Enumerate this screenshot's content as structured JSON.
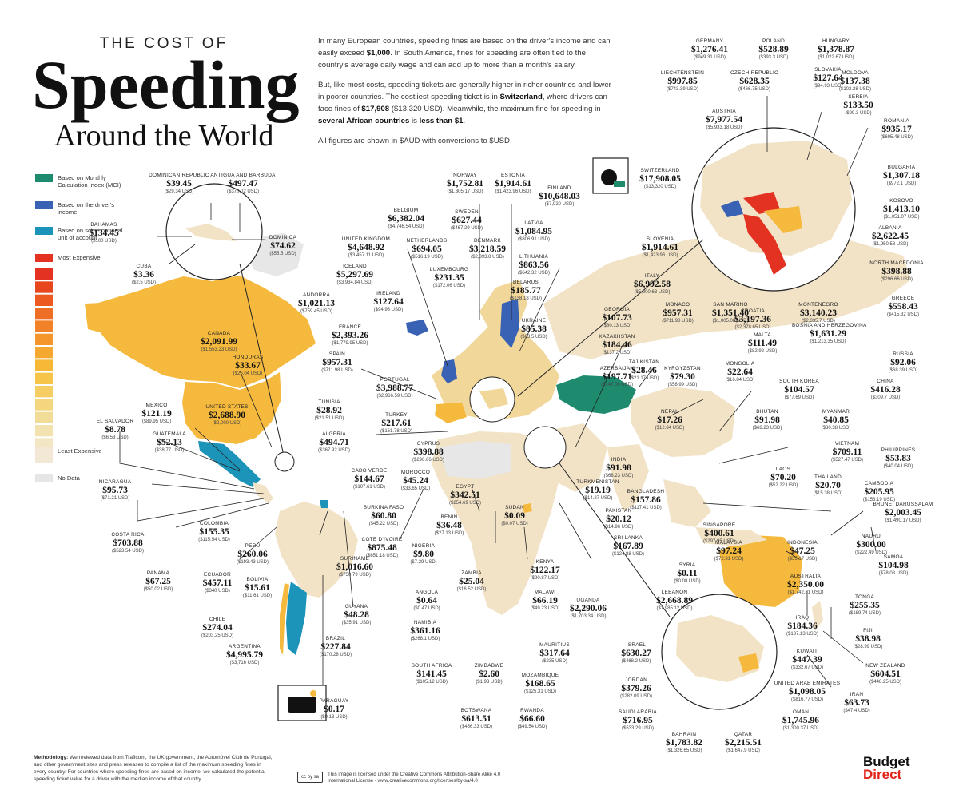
{
  "title": {
    "kicker": "THE COST OF",
    "main": "Speeding",
    "sub": "Around the World"
  },
  "intro": {
    "p1a": "In many European countries, speeding fines are based on the driver's income and can easily exceed ",
    "p1b": "$1,000",
    "p1c": ". In South America, fines for speeding are often tied to the country's average daily wage and can add up to more than a month's salary.",
    "p2a": "But, like most costs, speeding tickets are generally higher in richer countries and lower in poorer countries. The costliest speeding ticket is in ",
    "p2b": "Switzerland",
    "p2c": ", where drivers can face fines of ",
    "p2d": "$17,908",
    "p2e": " ($13,320 USD). Meanwhile, the maximum fine for speeding in ",
    "p2f": "several African countries",
    "p2g": " is ",
    "p2h": "less than $1",
    "p2i": ".",
    "p3": "All figures are shown in $AUD with conversions to $USD."
  },
  "legend": {
    "mci": "Based on Monthly Calculation Index (MCI)",
    "income": "Based on the driver's income",
    "national": "Based on some national unit of account",
    "most": "Most Expensive",
    "least": "Least Expensive",
    "nodata": "No Data",
    "colors": {
      "mci": "#1e8a6e",
      "income": "#3a62b4",
      "national": "#1c93b8",
      "most": "#e43222",
      "least": "#f3e8d6",
      "nodata": "#e6e6e6"
    }
  },
  "colors": {
    "top": "#e43222",
    "high": "#f28a2a",
    "mid": "#f5b93e",
    "low": "#f1d79a",
    "vlow": "#f2e3c7",
    "nodata": "#e7e7e7"
  },
  "countries": [
    {
      "n": "Dominican Republic",
      "a": "$39.45",
      "u": "($29.34 USD)"
    },
    {
      "n": "Antigua and Barbuda",
      "a": "$497.47",
      "u": "($370.02 USD)"
    },
    {
      "n": "Bahamas",
      "a": "$134.45",
      "u": "($100 USD)"
    },
    {
      "n": "Dominica",
      "a": "$74.62",
      "u": "($55.5 USD)"
    },
    {
      "n": "Cuba",
      "a": "$3.36",
      "u": "($2.5 USD)"
    },
    {
      "n": "Canada",
      "a": "$2,091.99",
      "u": "($1,553.23 USD)"
    },
    {
      "n": "Honduras",
      "a": "$33.67",
      "u": "($25.04 USD)"
    },
    {
      "n": "United States",
      "a": "$2,688.90",
      "u": "($2,000 USD)"
    },
    {
      "n": "Mexico",
      "a": "$121.19",
      "u": "($89.95 USD)"
    },
    {
      "n": "El Salvador",
      "a": "$8.78",
      "u": "($6.53 USD)"
    },
    {
      "n": "Guatemala",
      "a": "$52.13",
      "u": "($38.77 USD)"
    },
    {
      "n": "Nicaragua",
      "a": "$95.73",
      "u": "($71.21 USD)"
    },
    {
      "n": "Costa Rica",
      "a": "$703.88",
      "u": "($523.54 USD)"
    },
    {
      "n": "Panama",
      "a": "$67.25",
      "u": "($50.02 USD)"
    },
    {
      "n": "Colombia",
      "a": "$155.35",
      "u": "($115.54 USD)"
    },
    {
      "n": "Peru",
      "a": "$260.06",
      "u": "($193.43 USD)"
    },
    {
      "n": "Ecuador",
      "a": "$457.11",
      "u": "($340 USD)"
    },
    {
      "n": "Bolivia",
      "a": "$15.61",
      "u": "($11.61 USD)"
    },
    {
      "n": "Chile",
      "a": "$274.04",
      "u": "($203.25 USD)"
    },
    {
      "n": "Argentina",
      "a": "$4,995.79",
      "u": "($3,716 USD)"
    },
    {
      "n": "Brazil",
      "a": "$227.84",
      "u": "($170.28 USD)"
    },
    {
      "n": "Guyana",
      "a": "$48.28",
      "u": "($35.91 USD)"
    },
    {
      "n": "Suriname",
      "a": "$1,016.60",
      "u": "($750.79 USD)"
    },
    {
      "n": "Paraguay",
      "a": "$0.17",
      "u": "($0.13 USD)"
    },
    {
      "n": "Norway",
      "a": "$1,752.81",
      "u": "($1,305.17 USD)"
    },
    {
      "n": "Estonia",
      "a": "$1,914.61",
      "u": "($1,423.96 USD)"
    },
    {
      "n": "Finland",
      "a": "$10,648.03",
      "u": "($7,920 USD)"
    },
    {
      "n": "Belgium",
      "a": "$6,382.04",
      "u": "($4,746.54 USD)"
    },
    {
      "n": "Sweden",
      "a": "$627.44",
      "u": "($467.29 USD)"
    },
    {
      "n": "Latvia",
      "a": "$1,084.95",
      "u": "($806.91 USD)"
    },
    {
      "n": "United Kingdom",
      "a": "$4,648.92",
      "u": "($3,457.11 USD)"
    },
    {
      "n": "Netherlands",
      "a": "$694.05",
      "u": "($516.19 USD)"
    },
    {
      "n": "Denmark",
      "a": "$3,218.59",
      "u": "($2,393.8 USD)"
    },
    {
      "n": "Lithuania",
      "a": "$863.56",
      "u": "($642.32 USD)"
    },
    {
      "n": "Iceland",
      "a": "$5,297.69",
      "u": "($3,934.84 USD)"
    },
    {
      "n": "Luxembourg",
      "a": "$231.35",
      "u": "($172.06 USD)"
    },
    {
      "n": "Ireland",
      "a": "$127.64",
      "u": "($94.93 USD)"
    },
    {
      "n": "Belarus",
      "a": "$185.77",
      "u": "($138.18 USD)"
    },
    {
      "n": "Andorra",
      "a": "$1,021.13",
      "u": "($759.45 USD)"
    },
    {
      "n": "France",
      "a": "$2,393.26",
      "u": "($1,779.95 USD)"
    },
    {
      "n": "Ukraine",
      "a": "$85.38",
      "u": "($63.5 USD)"
    },
    {
      "n": "Spain",
      "a": "$957.31",
      "u": "($711.98 USD)"
    },
    {
      "n": "Portugal",
      "a": "$3,988.77",
      "u": "($2,966.59 USD)"
    },
    {
      "n": "Tunisia",
      "a": "$28.92",
      "u": "($21.51 USD)"
    },
    {
      "n": "Turkey",
      "a": "$217.61",
      "u": "($161.78 USD)"
    },
    {
      "n": "Algeria",
      "a": "$494.71",
      "u": "($367.92 USD)"
    },
    {
      "n": "Cyprus",
      "a": "$398.88",
      "u": "($296.66 USD)"
    },
    {
      "n": "Morocco",
      "a": "$45.24",
      "u": "($33.65 USD)"
    },
    {
      "n": "Cabo Verde",
      "a": "$144.67",
      "u": "($107.61 USD)"
    },
    {
      "n": "Egypt",
      "a": "$342.51",
      "u": "($254.69 USD)"
    },
    {
      "n": "Burkina Faso",
      "a": "$60.80",
      "u": "($45.22 USD)"
    },
    {
      "n": "Benin",
      "a": "$36.48",
      "u": "($27.13 USD)"
    },
    {
      "n": "Sudan",
      "a": "$0.09",
      "u": "($0.07 USD)"
    },
    {
      "n": "Cote d'Ivoire",
      "a": "$875.48",
      "u": "($651.18 USD)"
    },
    {
      "n": "Nigeria",
      "a": "$9.80",
      "u": "($7.29 USD)"
    },
    {
      "n": "Kenya",
      "a": "$122.17",
      "u": "($90.87 USD)"
    },
    {
      "n": "Zambia",
      "a": "$25.04",
      "u": "($16.52 USD)"
    },
    {
      "n": "Angola",
      "a": "$0.64",
      "u": "($0.47 USD)"
    },
    {
      "n": "Malawi",
      "a": "$66.19",
      "u": "($49.23 USD)"
    },
    {
      "n": "Uganda",
      "a": "$2,290.06",
      "u": "($1,703.34 USD)"
    },
    {
      "n": "Namibia",
      "a": "$361.16",
      "u": "($268.1 USD)"
    },
    {
      "n": "Mauritius",
      "a": "$317.64",
      "u": "($235 USD)"
    },
    {
      "n": "South Africa",
      "a": "$141.45",
      "u": "($105.12 USD)"
    },
    {
      "n": "Zimbabwe",
      "a": "$2.60",
      "u": "($1.93 USD)"
    },
    {
      "n": "Mozambique",
      "a": "$168.65",
      "u": "($125.31 USD)"
    },
    {
      "n": "Botswana",
      "a": "$613.51",
      "u": "($456.33 USD)"
    },
    {
      "n": "Rwanda",
      "a": "$66.60",
      "u": "($49.54 USD)"
    },
    {
      "n": "Germany",
      "a": "$1,276.41",
      "u": "($949.31 USD)"
    },
    {
      "n": "Poland",
      "a": "$528.89",
      "u": "($393.3 USD)"
    },
    {
      "n": "Hungary",
      "a": "$1,378.87",
      "u": "($1,022.67 USD)"
    },
    {
      "n": "Liechtenstein",
      "a": "$997.85",
      "u": "($743.39 USD)"
    },
    {
      "n": "Czech Republic",
      "a": "$628.35",
      "u": "($466.75 USD)"
    },
    {
      "n": "Slovakia",
      "a": "$127.64",
      "u": "($94.93 USD)"
    },
    {
      "n": "Moldova",
      "a": "$137.38",
      "u": "($102.28 USD)"
    },
    {
      "n": "Serbia",
      "a": "$133.50",
      "u": "($99.3 USD)"
    },
    {
      "n": "Austria",
      "a": "$7,977.54",
      "u": "($5,933.18 USD)"
    },
    {
      "n": "Romania",
      "a": "$935.17",
      "u": "($695.48 USD)"
    },
    {
      "n": "Switzerland",
      "a": "$17,908.05",
      "u": "($13,320 USD)"
    },
    {
      "n": "Bulgaria",
      "a": "$1,307.18",
      "u": "($972.1 USD)"
    },
    {
      "n": "Kosovo",
      "a": "$1,413.10",
      "u": "($1,051.07 USD)"
    },
    {
      "n": "Albania",
      "a": "$2,622.45",
      "u": "($1,950.58 USD)"
    },
    {
      "n": "Slovenia",
      "a": "$1,914.61",
      "u": "($1,423.96 USD)"
    },
    {
      "n": "North Macedonia",
      "a": "$398.88",
      "u": "($296.66 USD)"
    },
    {
      "n": "Italy",
      "a": "$6,992.58",
      "u": "($5,200.63 USD)"
    },
    {
      "n": "Monaco",
      "a": "$957.31",
      "u": "($711.98 USD)"
    },
    {
      "n": "San Marino",
      "a": "$1,351.40",
      "u": "($1,005.08 USD)"
    },
    {
      "n": "Greece",
      "a": "$558.43",
      "u": "($415.32 USD)"
    },
    {
      "n": "Montenegro",
      "a": "$3,140.23",
      "u": "($2,335.7 USD)"
    },
    {
      "n": "Croatia",
      "a": "$3,197.36",
      "u": "($2,378.65 USD)"
    },
    {
      "n": "Malta",
      "a": "$111.49",
      "u": "($82.92 USD)"
    },
    {
      "n": "Bosnia and Herzegovina",
      "a": "$1,631.29",
      "u": "($1,213.35 USD)"
    },
    {
      "n": "Georgia",
      "a": "$107.73",
      "u": "($80.13 USD)"
    },
    {
      "n": "Kazakhstan",
      "a": "$184.46",
      "u": "($137.2 USD)"
    },
    {
      "n": "Azerbaijan",
      "a": "$197.71",
      "u": "($147.06 USD)"
    },
    {
      "n": "Tajikistan",
      "a": "$28.46",
      "u": "($21.17 USD)"
    },
    {
      "n": "Kyrgyzstan",
      "a": "$79.30",
      "u": "($58.99 USD)"
    },
    {
      "n": "Mongolia",
      "a": "$22.64",
      "u": "($16.84 USD)"
    },
    {
      "n": "Russia",
      "a": "$92.06",
      "u": "($68.39 USD)"
    },
    {
      "n": "China",
      "a": "$416.28",
      "u": "($309.7 USD)"
    },
    {
      "n": "South Korea",
      "a": "$104.57",
      "u": "($77.69 USD)"
    },
    {
      "n": "Nepal",
      "a": "$17.26",
      "u": "($12.84 USD)"
    },
    {
      "n": "Bhutan",
      "a": "$91.98",
      "u": "($68.23 USD)"
    },
    {
      "n": "Myanmar",
      "a": "$40.85",
      "u": "($30.38 USD)"
    },
    {
      "n": "Vietnam",
      "a": "$709.11",
      "u": "($527.47 USD)"
    },
    {
      "n": "India",
      "a": "$91.98",
      "u": "($68.23 USD)"
    },
    {
      "n": "Philippines",
      "a": "$53.83",
      "u": "($40.04 USD)"
    },
    {
      "n": "Turkmenistan",
      "a": "$19.19",
      "u": "($14.27 USD)"
    },
    {
      "n": "Laos",
      "a": "$70.20",
      "u": "($52.22 USD)"
    },
    {
      "n": "Thailand",
      "a": "$20.70",
      "u": "($15.38 USD)"
    },
    {
      "n": "Cambodia",
      "a": "$205.95",
      "u": "($153.19 USD)"
    },
    {
      "n": "Bangladesh",
      "a": "$157.86",
      "u": "($117.41 USD)"
    },
    {
      "n": "Pakistan",
      "a": "$20.12",
      "u": "($14.96 USD)"
    },
    {
      "n": "Brunei Darussalam",
      "a": "$2,003.45",
      "u": "($1,490.17 USD)"
    },
    {
      "n": "Singapore",
      "a": "$400.61",
      "u": "($297.95 USD)"
    },
    {
      "n": "Sri Lanka",
      "a": "$167.89",
      "u": "($124.88 USD)"
    },
    {
      "n": "Nauru",
      "a": "$300.00",
      "u": "($222.49 USD)"
    },
    {
      "n": "Malaysia",
      "a": "$97.24",
      "u": "($72.31 USD)"
    },
    {
      "n": "Indonesia",
      "a": "$47.25",
      "u": "($35.17 USD)"
    },
    {
      "n": "Samoa",
      "a": "$104.98",
      "u": "($78.08 USD)"
    },
    {
      "n": "Syria",
      "a": "$0.11",
      "u": "($0.08 USD)"
    },
    {
      "n": "Australia",
      "a": "$2,350.00",
      "u": "($1,742.81 USD)"
    },
    {
      "n": "Lebanon",
      "a": "$2,668.89",
      "u": "($1,985.12 USD)"
    },
    {
      "n": "Tonga",
      "a": "$255.35",
      "u": "($189.74 USD)"
    },
    {
      "n": "Iraq",
      "a": "$184.36",
      "u": "($137.13 USD)"
    },
    {
      "n": "Fiji",
      "a": "$38.98",
      "u": "($28.99 USD)"
    },
    {
      "n": "Israel",
      "a": "$630.27",
      "u": "($468.2 USD)"
    },
    {
      "n": "Kuwait",
      "a": "$447.39",
      "u": "($332.67 USD)"
    },
    {
      "n": "New Zealand",
      "a": "$604.51",
      "u": "($448.25 USD)"
    },
    {
      "n": "Jordan",
      "a": "$379.26",
      "u": "($282.09 USD)"
    },
    {
      "n": "United Arab Emirates",
      "a": "$1,098.05",
      "u": "($816.77 USD)"
    },
    {
      "n": "Iran",
      "a": "$63.73",
      "u": "($47.4 USD)"
    },
    {
      "n": "Saudi Arabia",
      "a": "$716.95",
      "u": "($533.29 USD)"
    },
    {
      "n": "Oman",
      "a": "$1,745.96",
      "u": "($1,300.37 USD)"
    },
    {
      "n": "Bahrain",
      "a": "$1,783.82",
      "u": "($1,326.65 USD)"
    },
    {
      "n": "Qatar",
      "a": "$2,215.51",
      "u": "($1,647.9 USD)"
    }
  ],
  "methodology": {
    "lead": "Methodology:",
    "text": " We reviewed data from Traficom, the UK government, the Automóvel Club de Portugal, and other government sites and press releases to compile a list of the maximum speeding fines in every country. For countries where speeding fines are based on income, we calculated the potential speeding ticket value for a driver with the median income of that country."
  },
  "license": {
    "badge": "cc by sa",
    "text": "This image is licensed under the Creative Commons Attribution-Share Alike 4.0 International License - www.creativecommons.org/licenses/by-sa/4.0"
  },
  "brand": {
    "line1": "Budget",
    "line2": "Direct"
  }
}
